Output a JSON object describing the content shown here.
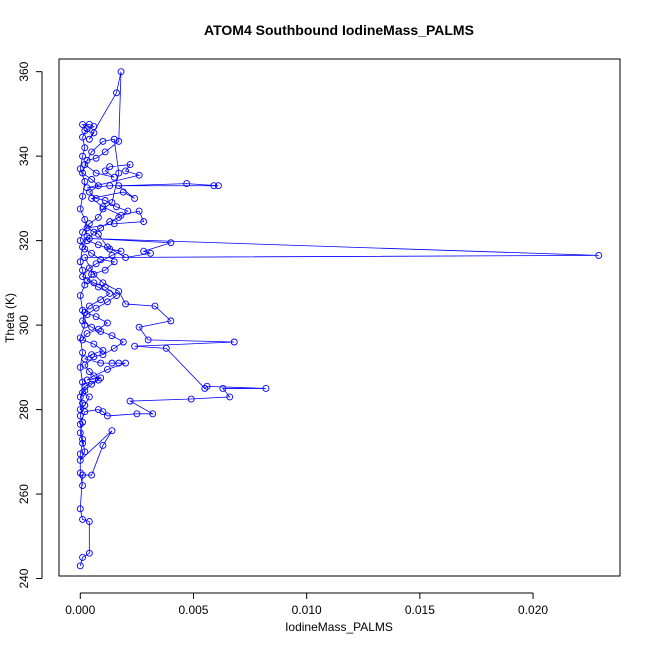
{
  "chart_data": {
    "type": "scatter",
    "title": "ATOM4 Southbound IodineMass_PALMS",
    "xlabel": "IodineMass_PALMS",
    "ylabel": "Theta (K)",
    "xlim": [
      -0.00094,
      0.02384
    ],
    "ylim": [
      240.6,
      363.0
    ],
    "xticks": [
      0.0,
      0.005,
      0.01,
      0.015,
      0.02
    ],
    "xtick_labels": [
      "0.000",
      "0.005",
      "0.010",
      "0.015",
      "0.020"
    ],
    "yticks": [
      240,
      260,
      280,
      300,
      320,
      340,
      360
    ],
    "ytick_labels": [
      "240",
      "260",
      "280",
      "300",
      "320",
      "340",
      "360"
    ],
    "grid": false,
    "legend": "none",
    "color": "#0000ff",
    "connect_points": true,
    "series": [
      {
        "values": [
          [
            0.0,
            243.0
          ],
          [
            0.0001,
            245.0
          ],
          [
            0.0004,
            246.0
          ],
          [
            0.0004,
            253.5
          ],
          [
            0.0001,
            254.0
          ],
          [
            0.0,
            256.5
          ],
          [
            0.0001,
            264.5
          ],
          [
            0.0005,
            264.5
          ],
          [
            0.001,
            271.5
          ],
          [
            0.0014,
            275.0
          ],
          [
            0.0,
            268.0
          ],
          [
            0.0002,
            270.0
          ],
          [
            0.0001,
            273.0
          ],
          [
            0.0,
            276.5
          ],
          [
            0.0002,
            279.5
          ],
          [
            0.0008,
            280.0
          ],
          [
            0.001,
            279.5
          ],
          [
            0.0012,
            278.5
          ],
          [
            0.0025,
            279.0
          ],
          [
            0.0032,
            279.0
          ],
          [
            0.0022,
            282.0
          ],
          [
            0.0049,
            282.5
          ],
          [
            0.0066,
            283.0
          ],
          [
            0.0063,
            285.0
          ],
          [
            0.0082,
            285.0
          ],
          [
            0.0056,
            285.5
          ],
          [
            0.0055,
            285.0
          ],
          [
            0.0038,
            294.5
          ],
          [
            0.0024,
            295.0
          ],
          [
            0.0068,
            296.0
          ],
          [
            0.003,
            296.5
          ],
          [
            0.0026,
            299.5
          ],
          [
            0.004,
            301.0
          ],
          [
            0.0033,
            304.5
          ],
          [
            0.002,
            305.0
          ],
          [
            0.0017,
            308.0
          ],
          [
            0.001,
            310.0
          ],
          [
            0.0006,
            312.0
          ],
          [
            0.0002,
            316.0
          ],
          [
            0.0229,
            316.5
          ],
          [
            0.0004,
            320.5
          ],
          [
            0.004,
            319.5
          ],
          [
            0.0028,
            317.5
          ],
          [
            0.0031,
            317.0
          ],
          [
            0.002,
            316.0
          ],
          [
            0.0012,
            318.5
          ],
          [
            0.0008,
            321.5
          ],
          [
            0.0003,
            323.0
          ],
          [
            0.0015,
            324.0
          ],
          [
            0.0028,
            324.5
          ],
          [
            0.0026,
            327.0
          ],
          [
            0.0018,
            326.0
          ],
          [
            0.001,
            328.0
          ],
          [
            0.0005,
            330.0
          ],
          [
            0.0019,
            331.5
          ],
          [
            0.0024,
            330.0
          ],
          [
            0.0017,
            333.0
          ],
          [
            0.0047,
            333.5
          ],
          [
            0.0061,
            333.0
          ],
          [
            0.0059,
            333.0
          ],
          [
            0.0013,
            333.0
          ],
          [
            0.0003,
            332.5
          ],
          [
            0.0026,
            335.5
          ],
          [
            0.002,
            336.5
          ],
          [
            0.0022,
            338.0
          ],
          [
            0.0013,
            337.5
          ],
          [
            0.0011,
            336.5
          ],
          [
            0.0015,
            335.0
          ],
          [
            0.0007,
            336.0
          ],
          [
            0.0002,
            338.0
          ],
          [
            0.0005,
            341.0
          ],
          [
            0.001,
            343.5
          ],
          [
            0.0015,
            344.0
          ],
          [
            0.0017,
            336.0
          ],
          [
            0.0014,
            329.0
          ],
          [
            0.001,
            327.5
          ],
          [
            0.0008,
            325.5
          ],
          [
            0.0004,
            324.0
          ],
          [
            0.0001,
            322.0
          ],
          [
            0.0,
            320.0
          ],
          [
            0.0002,
            318.0
          ],
          [
            0.0005,
            317.0
          ],
          [
            0.0009,
            315.5
          ],
          [
            0.0015,
            315.0
          ],
          [
            0.0011,
            313.0
          ],
          [
            0.0005,
            312.0
          ],
          [
            0.0003,
            310.5
          ],
          [
            0.0008,
            309.0
          ],
          [
            0.0013,
            307.5
          ],
          [
            0.0009,
            306.0
          ],
          [
            0.0004,
            304.5
          ],
          [
            0.0002,
            303.0
          ],
          [
            0.0007,
            302.0
          ],
          [
            0.0012,
            300.5
          ],
          [
            0.0008,
            299.0
          ],
          [
            0.0003,
            298.0
          ],
          [
            0.0001,
            296.5
          ],
          [
            0.0006,
            295.5
          ],
          [
            0.001,
            294.0
          ],
          [
            0.0005,
            293.0
          ],
          [
            0.0002,
            292.0
          ],
          [
            0.0009,
            291.0
          ],
          [
            0.0014,
            291.0
          ],
          [
            0.0017,
            291.0
          ],
          [
            0.002,
            291.0
          ],
          [
            0.0012,
            289.5
          ],
          [
            0.0006,
            288.0
          ],
          [
            0.0003,
            287.0
          ],
          [
            0.0009,
            287.5
          ],
          [
            0.0002,
            285.5
          ],
          [
            0.0001,
            284.0
          ],
          [
            0.0004,
            283.0
          ],
          [
            0.0002,
            281.0
          ],
          [
            0.0,
            280.0
          ],
          [
            0.0001,
            286.5
          ],
          [
            0.0,
            290.0
          ],
          [
            0.0001,
            293.5
          ],
          [
            0.0,
            297.0
          ],
          [
            0.0002,
            300.0
          ],
          [
            0.0001,
            303.5
          ],
          [
            0.0,
            307.0
          ],
          [
            0.0002,
            309.5
          ],
          [
            0.0001,
            313.0
          ],
          [
            0.0,
            315.0
          ],
          [
            0.0001,
            318.5
          ],
          [
            0.0003,
            321.0
          ],
          [
            0.0002,
            325.0
          ],
          [
            0.0,
            327.5
          ],
          [
            0.0001,
            330.5
          ],
          [
            0.0002,
            334.0
          ],
          [
            0.0,
            337.0
          ],
          [
            0.0001,
            340.0
          ],
          [
            0.0002,
            342.0
          ],
          [
            0.0001,
            344.5
          ],
          [
            0.0003,
            346.5
          ],
          [
            0.0001,
            347.5
          ],
          [
            0.0004,
            347.5
          ],
          [
            0.0006,
            347.0
          ],
          [
            0.0002,
            346.0
          ],
          [
            0.0006,
            345.5
          ],
          [
            0.0004,
            344.0
          ],
          [
            0.0016,
            355.0
          ],
          [
            0.0018,
            360.0
          ],
          [
            0.0017,
            343.5
          ],
          [
            0.0011,
            341.0
          ],
          [
            0.0007,
            339.5
          ],
          [
            0.0003,
            339.0
          ],
          [
            0.0001,
            336.0
          ],
          [
            0.0005,
            334.5
          ],
          [
            0.0008,
            333.0
          ],
          [
            0.0004,
            331.5
          ],
          [
            0.0007,
            330.0
          ],
          [
            0.0011,
            329.5
          ],
          [
            0.0016,
            328.0
          ],
          [
            0.0021,
            327.0
          ],
          [
            0.0017,
            325.5
          ],
          [
            0.0013,
            324.5
          ],
          [
            0.0009,
            323.0
          ],
          [
            0.0006,
            322.0
          ],
          [
            0.0003,
            320.0
          ],
          [
            0.0008,
            319.0
          ],
          [
            0.0013,
            318.0
          ],
          [
            0.0018,
            317.5
          ],
          [
            0.0014,
            316.5
          ],
          [
            0.0007,
            314.5
          ],
          [
            0.0004,
            313.5
          ],
          [
            0.0001,
            311.5
          ],
          [
            0.0006,
            310.0
          ],
          [
            0.0011,
            309.0
          ],
          [
            0.0016,
            307.0
          ],
          [
            0.0012,
            305.5
          ],
          [
            0.0007,
            304.0
          ],
          [
            0.0003,
            302.5
          ],
          [
            0.0001,
            301.0
          ],
          [
            0.0005,
            299.5
          ],
          [
            0.0009,
            298.5
          ],
          [
            0.0014,
            297.5
          ],
          [
            0.0019,
            296.0
          ],
          [
            0.0015,
            294.5
          ],
          [
            0.001,
            293.0
          ],
          [
            0.0006,
            292.5
          ],
          [
            0.0002,
            290.5
          ],
          [
            0.0004,
            289.0
          ],
          [
            0.0008,
            287.0
          ],
          [
            0.0005,
            286.0
          ],
          [
            0.0002,
            284.5
          ],
          [
            0.0,
            283.0
          ],
          [
            0.0001,
            281.5
          ],
          [
            0.0,
            278.5
          ],
          [
            0.0001,
            277.0
          ],
          [
            0.0,
            274.5
          ],
          [
            0.0001,
            272.0
          ],
          [
            0.0,
            269.5
          ],
          [
            0.0,
            265.0
          ],
          [
            0.0001,
            262.0
          ]
        ]
      }
    ]
  }
}
